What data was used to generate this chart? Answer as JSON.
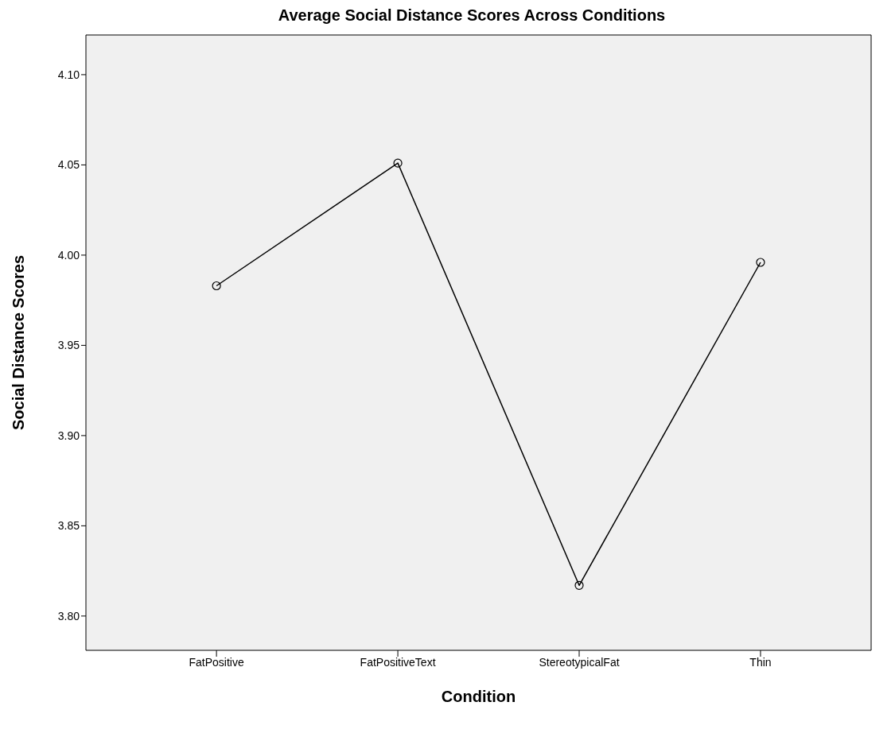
{
  "chart_data": {
    "type": "line",
    "title": "Average Social Distance Scores Across Conditions",
    "xlabel": "Condition",
    "ylabel": "Social Distance Scores",
    "categories": [
      "FatPositive",
      "FatPositiveText",
      "StereotypicalFat",
      "Thin"
    ],
    "series": [
      {
        "color": "#000000",
        "values": [
          3.983,
          4.051,
          3.817,
          3.996
        ]
      }
    ],
    "ylim": [
      3.781,
      4.122
    ],
    "yticks": [
      {
        "value": 3.8,
        "label": "3.80"
      },
      3.85,
      {
        "value": 3.9,
        "label": "3.90"
      },
      3.95,
      {
        "value": 4.0,
        "label": "4.00"
      },
      4.05,
      {
        "value": 4.1,
        "label": "4.10"
      }
    ],
    "grid": false,
    "marker": "circle",
    "line_style": "solid"
  }
}
